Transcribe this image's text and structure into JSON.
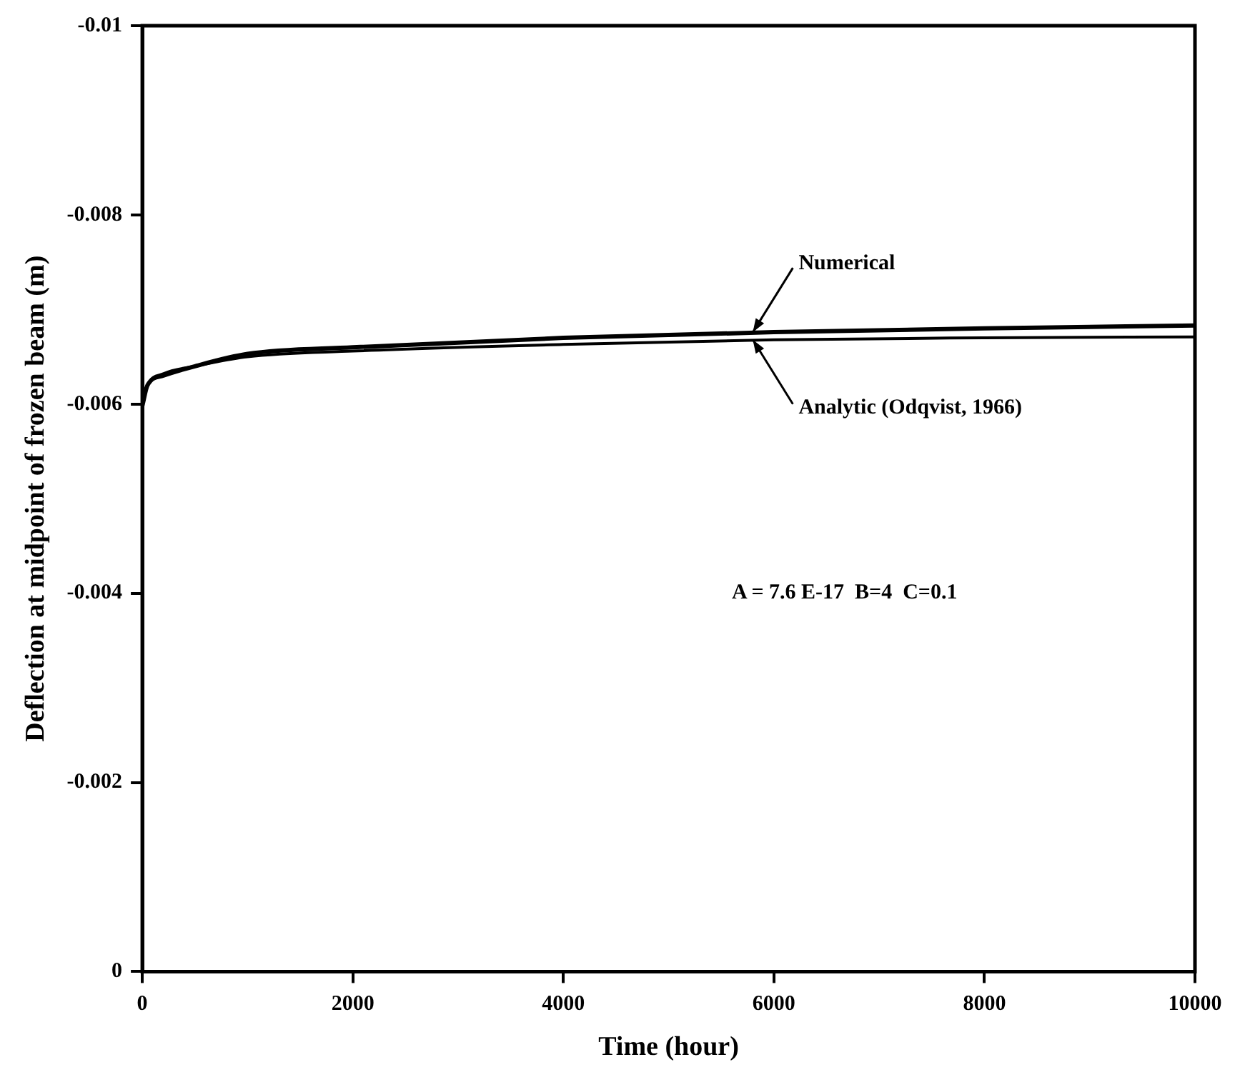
{
  "chart_data": {
    "type": "line",
    "xlabel": "Time (hour)",
    "ylabel": "Deflection at midpoint of frozen beam (m)",
    "xlim": [
      0,
      10000
    ],
    "xticks": [
      0,
      2000,
      4000,
      6000,
      8000,
      10000
    ],
    "ylim": [
      0,
      -0.01
    ],
    "yticks": [
      0,
      -0.002,
      -0.004,
      -0.006,
      -0.008,
      -0.01
    ],
    "grid": false,
    "legend": false,
    "marker": "none",
    "line_style": "solid",
    "series": [
      {
        "name": "Numerical",
        "color": "#000000",
        "x": [
          0,
          50,
          200,
          500,
          1000,
          2000,
          4000,
          6000,
          8000,
          10000
        ],
        "values": [
          -0.00598,
          -0.0062,
          -0.0063,
          -0.0064,
          -0.00653,
          -0.0066,
          -0.0067,
          -0.00676,
          -0.0068,
          -0.00683
        ]
      },
      {
        "name": "Analytic (Odqvist, 1966)",
        "color": "#000000",
        "x": [
          0,
          50,
          200,
          500,
          1000,
          2000,
          4000,
          6000,
          8000,
          10000
        ],
        "values": [
          -0.006,
          -0.0062,
          -0.00632,
          -0.0064,
          -0.0065,
          -0.00656,
          -0.00663,
          -0.00668,
          -0.0067,
          -0.00671
        ]
      }
    ],
    "annotations": [
      "A = 7.6 E-17  B=4  C=0.1"
    ]
  }
}
